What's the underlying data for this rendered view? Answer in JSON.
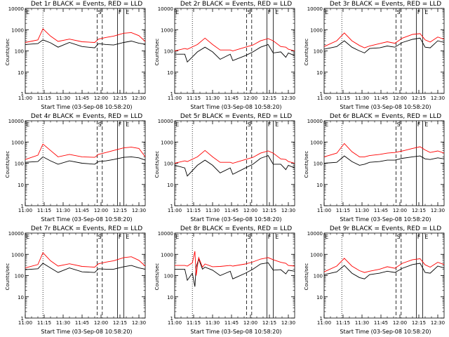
{
  "chart_data": [
    {
      "type": "line",
      "title": "Det 1r BLACK = Events, RED = LLD",
      "xlabel": "Start Time (03-Sep-08 10:58:20)",
      "ylabel": "Counts/sec",
      "marks": [
        {
          "label": "E"
        },
        {
          "label": "S"
        },
        {
          "label": "F"
        },
        {
          "label": "E"
        }
      ],
      "x_ticks": [
        "11:00",
        "11:15",
        "11:30",
        "11:45",
        "12:00",
        "12:15",
        "12:30"
      ],
      "y_ticks": [
        "1",
        "10",
        "100",
        "1000",
        "10000"
      ],
      "ylim": [
        1,
        10000
      ],
      "yscale": "log",
      "series": [
        {
          "name": "Events",
          "color": "#000000",
          "x": [
            0,
            10,
            14,
            20,
            26,
            35,
            45,
            55,
            58,
            64,
            70,
            78,
            84,
            90,
            95
          ],
          "values": [
            200,
            220,
            330,
            240,
            150,
            250,
            160,
            140,
            220,
            200,
            190,
            250,
            290,
            230,
            210
          ]
        },
        {
          "name": "LLD",
          "color": "#ff0000",
          "x": [
            0,
            10,
            14,
            20,
            26,
            35,
            45,
            55,
            58,
            64,
            70,
            78,
            84,
            90,
            95
          ],
          "values": [
            250,
            330,
            1100,
            500,
            280,
            360,
            270,
            250,
            360,
            430,
            500,
            680,
            730,
            520,
            280
          ]
        }
      ]
    },
    {
      "type": "line",
      "title": "Det 2r BLACK = Events, RED = LLD",
      "xlabel": "Start Time (03-Sep-08 10:58:20)",
      "ylabel": "Counts/sec",
      "marks": [
        {
          "label": "E"
        },
        {
          "label": "S"
        },
        {
          "label": "F"
        },
        {
          "label": "E"
        }
      ],
      "x_ticks": [
        "11:00",
        "11:15",
        "11:30",
        "11:45",
        "12:00",
        "12:15",
        "12:30"
      ],
      "y_ticks": [
        "1",
        "10",
        "100",
        "1000",
        "10000"
      ],
      "ylim": [
        1,
        10000
      ],
      "yscale": "log",
      "series": [
        {
          "name": "Events",
          "color": "#000000",
          "x": [
            0,
            8,
            10,
            18,
            24,
            30,
            36,
            44,
            46,
            56,
            62,
            68,
            74,
            78,
            84,
            88,
            90,
            95
          ],
          "values": [
            70,
            70,
            30,
            90,
            150,
            90,
            40,
            70,
            35,
            60,
            90,
            150,
            200,
            80,
            90,
            50,
            80,
            60
          ]
        },
        {
          "name": "LLD",
          "color": "#ff0000",
          "x": [
            0,
            8,
            10,
            18,
            24,
            30,
            36,
            44,
            46,
            56,
            62,
            68,
            74,
            78,
            84,
            88,
            90,
            95
          ],
          "values": [
            100,
            130,
            120,
            200,
            400,
            200,
            110,
            110,
            100,
            150,
            190,
            300,
            380,
            300,
            160,
            150,
            120,
            100
          ]
        }
      ]
    },
    {
      "type": "line",
      "title": "Det 3r BLACK = Events, RED = LLD",
      "xlabel": "Start Time (03-Sep-08 10:58:20)",
      "ylabel": "Counts/sec",
      "marks": [
        {
          "label": "E"
        },
        {
          "label": "S"
        },
        {
          "label": "F"
        },
        {
          "label": "E"
        }
      ],
      "x_ticks": [
        "11:00",
        "11:15",
        "11:30",
        "11:45",
        "12:00",
        "12:15",
        "12:30"
      ],
      "y_ticks": [
        "1",
        "10",
        "100",
        "1000",
        "10000"
      ],
      "ylim": [
        1,
        10000
      ],
      "yscale": "log",
      "series": [
        {
          "name": "Events",
          "color": "#000000",
          "x": [
            0,
            10,
            16,
            22,
            28,
            32,
            36,
            44,
            50,
            56,
            62,
            70,
            76,
            80,
            84,
            90,
            95
          ],
          "values": [
            120,
            160,
            300,
            150,
            100,
            80,
            130,
            140,
            170,
            150,
            250,
            350,
            400,
            150,
            140,
            300,
            250
          ]
        },
        {
          "name": "LLD",
          "color": "#ff0000",
          "x": [
            0,
            10,
            16,
            22,
            28,
            32,
            36,
            44,
            50,
            56,
            62,
            70,
            76,
            80,
            84,
            90,
            95
          ],
          "values": [
            160,
            300,
            700,
            300,
            180,
            140,
            170,
            220,
            270,
            230,
            400,
            600,
            650,
            330,
            260,
            450,
            350
          ]
        }
      ]
    },
    {
      "type": "line",
      "title": "Det 4r BLACK = Events, RED = LLD",
      "xlabel": "Start Time (03-Sep-08 10:58:20)",
      "ylabel": "Counts/sec",
      "marks": [
        {
          "label": "E"
        },
        {
          "label": "S"
        },
        {
          "label": "F"
        },
        {
          "label": "E"
        }
      ],
      "x_ticks": [
        "11:00",
        "11:15",
        "11:30",
        "11:45",
        "12:00",
        "12:15",
        "12:30"
      ],
      "y_ticks": [
        "1",
        "10",
        "100",
        "1000",
        "10000"
      ],
      "ylim": [
        1,
        10000
      ],
      "yscale": "log",
      "series": [
        {
          "name": "Events",
          "color": "#000000",
          "x": [
            0,
            10,
            14,
            20,
            26,
            35,
            45,
            55,
            58,
            64,
            70,
            78,
            84,
            90,
            95
          ],
          "values": [
            110,
            120,
            200,
            130,
            90,
            130,
            100,
            90,
            120,
            130,
            150,
            190,
            200,
            180,
            140
          ]
        },
        {
          "name": "LLD",
          "color": "#ff0000",
          "x": [
            0,
            10,
            14,
            20,
            26,
            35,
            45,
            55,
            58,
            64,
            70,
            78,
            84,
            90,
            95
          ],
          "values": [
            150,
            240,
            800,
            400,
            200,
            260,
            200,
            190,
            260,
            320,
            400,
            530,
            570,
            500,
            200
          ]
        }
      ]
    },
    {
      "type": "line",
      "title": "Det 5r BLACK = Events, RED = LLD",
      "xlabel": "Start Time (03-Sep-08 10:58:20)",
      "ylabel": "Counts/sec",
      "marks": [
        {
          "label": "E"
        },
        {
          "label": "S"
        },
        {
          "label": "F"
        },
        {
          "label": "E"
        }
      ],
      "x_ticks": [
        "11:00",
        "11:15",
        "11:30",
        "11:45",
        "12:00",
        "12:15",
        "12:30"
      ],
      "y_ticks": [
        "1",
        "10",
        "100",
        "1000",
        "10000"
      ],
      "ylim": [
        1,
        10000
      ],
      "yscale": "log",
      "series": [
        {
          "name": "Events",
          "color": "#000000",
          "x": [
            0,
            8,
            10,
            18,
            24,
            30,
            36,
            44,
            46,
            56,
            62,
            68,
            74,
            78,
            84,
            88,
            90,
            95
          ],
          "values": [
            80,
            60,
            25,
            80,
            140,
            80,
            35,
            60,
            30,
            60,
            90,
            170,
            230,
            90,
            90,
            50,
            80,
            60
          ]
        },
        {
          "name": "LLD",
          "color": "#ff0000",
          "x": [
            0,
            8,
            10,
            18,
            24,
            30,
            36,
            44,
            46,
            56,
            62,
            68,
            74,
            78,
            84,
            88,
            90,
            95
          ],
          "values": [
            100,
            130,
            120,
            200,
            400,
            200,
            110,
            110,
            100,
            150,
            190,
            300,
            380,
            300,
            160,
            150,
            120,
            100
          ]
        }
      ]
    },
    {
      "type": "line",
      "title": "Det 6r BLACK = Events, RED = LLD",
      "xlabel": "Start Time (03-Sep-08 10:58:20)",
      "ylabel": "Counts/sec",
      "marks": [
        {
          "label": "E"
        },
        {
          "label": "S"
        },
        {
          "label": "F"
        },
        {
          "label": "E"
        }
      ],
      "x_ticks": [
        "11:00",
        "11:15",
        "11:30",
        "11:45",
        "12:00",
        "12:15",
        "12:30"
      ],
      "y_ticks": [
        "1",
        "10",
        "100",
        "1000",
        "10000"
      ],
      "ylim": [
        1,
        10000
      ],
      "yscale": "log",
      "series": [
        {
          "name": "Events",
          "color": "#000000",
          "x": [
            0,
            10,
            16,
            22,
            28,
            32,
            36,
            44,
            50,
            56,
            62,
            70,
            76,
            80,
            84,
            90,
            95
          ],
          "values": [
            100,
            110,
            220,
            120,
            80,
            90,
            110,
            120,
            140,
            140,
            170,
            200,
            220,
            160,
            150,
            180,
            160
          ]
        },
        {
          "name": "LLD",
          "color": "#ff0000",
          "x": [
            0,
            10,
            16,
            22,
            28,
            32,
            36,
            44,
            50,
            56,
            62,
            70,
            76,
            80,
            84,
            90,
            95
          ],
          "values": [
            200,
            300,
            850,
            350,
            200,
            200,
            230,
            260,
            300,
            320,
            380,
            500,
            600,
            420,
            320,
            380,
            300
          ]
        }
      ]
    },
    {
      "type": "line",
      "title": "Det 7r BLACK = Events, RED = LLD",
      "xlabel": "Start Time (03-Sep-08 10:58:20)",
      "ylabel": "Counts/sec",
      "marks": [
        {
          "label": "E"
        },
        {
          "label": "S"
        },
        {
          "label": "F"
        },
        {
          "label": "E"
        }
      ],
      "x_ticks": [
        "11:00",
        "11:15",
        "11:30",
        "11:45",
        "12:00",
        "12:15",
        "12:30"
      ],
      "y_ticks": [
        "1",
        "10",
        "100",
        "1000",
        "10000"
      ],
      "ylim": [
        1,
        10000
      ],
      "yscale": "log",
      "series": [
        {
          "name": "Events",
          "color": "#000000",
          "x": [
            0,
            10,
            14,
            20,
            26,
            35,
            45,
            55,
            58,
            64,
            70,
            78,
            84,
            90,
            95
          ],
          "values": [
            190,
            210,
            380,
            230,
            140,
            230,
            150,
            140,
            210,
            200,
            200,
            260,
            300,
            230,
            200
          ]
        },
        {
          "name": "LLD",
          "color": "#ff0000",
          "x": [
            0,
            10,
            14,
            20,
            26,
            35,
            45,
            55,
            58,
            64,
            70,
            78,
            84,
            90,
            95
          ],
          "values": [
            230,
            330,
            1200,
            500,
            280,
            360,
            270,
            250,
            360,
            430,
            500,
            700,
            770,
            520,
            280
          ]
        }
      ]
    },
    {
      "type": "line",
      "title": "Det 8r BLACK = Events, RED = LLD",
      "xlabel": "Start Time (03-Sep-08 10:58:20)",
      "ylabel": "Counts/sec",
      "marks": [
        {
          "label": "E"
        },
        {
          "label": "S"
        },
        {
          "label": "F"
        },
        {
          "label": "E"
        }
      ],
      "x_ticks": [
        "11:00",
        "11:15",
        "11:30",
        "11:45",
        "12:00",
        "12:15",
        "12:30"
      ],
      "y_ticks": [
        "1",
        "10",
        "100",
        "1000",
        "10000"
      ],
      "ylim": [
        1,
        10000
      ],
      "yscale": "log",
      "series": [
        {
          "name": "Events",
          "color": "#000000",
          "x": [
            0,
            8,
            10,
            14,
            16,
            17,
            19,
            22,
            24,
            30,
            36,
            44,
            46,
            56,
            62,
            68,
            74,
            78,
            84,
            88,
            90,
            95
          ],
          "values": [
            200,
            200,
            60,
            130,
            30,
            250,
            600,
            200,
            250,
            180,
            100,
            160,
            70,
            130,
            200,
            350,
            400,
            180,
            190,
            120,
            180,
            160
          ]
        },
        {
          "name": "LLD",
          "color": "#ff0000",
          "x": [
            0,
            8,
            10,
            14,
            16,
            17,
            19,
            22,
            24,
            30,
            36,
            44,
            46,
            56,
            62,
            68,
            74,
            78,
            84,
            88,
            90,
            95
          ],
          "values": [
            300,
            300,
            280,
            400,
            1400,
            100,
            700,
            250,
            350,
            260,
            270,
            300,
            280,
            350,
            440,
            600,
            700,
            560,
            420,
            380,
            300,
            280
          ]
        }
      ]
    },
    {
      "type": "line",
      "title": "Det 9r BLACK = Events, RED = LLD",
      "xlabel": "Start Time (03-Sep-08 10:58:20)",
      "ylabel": "Counts/sec",
      "marks": [
        {
          "label": "E"
        },
        {
          "label": "S"
        },
        {
          "label": "F"
        },
        {
          "label": "E"
        }
      ],
      "x_ticks": [
        "11:00",
        "11:15",
        "11:30",
        "11:45",
        "12:00",
        "12:15",
        "12:30"
      ],
      "y_ticks": [
        "1",
        "10",
        "100",
        "1000",
        "10000"
      ],
      "ylim": [
        1,
        10000
      ],
      "yscale": "log",
      "series": [
        {
          "name": "Events",
          "color": "#000000",
          "x": [
            0,
            10,
            16,
            22,
            28,
            32,
            36,
            44,
            50,
            56,
            62,
            70,
            76,
            80,
            84,
            90,
            95
          ],
          "values": [
            110,
            150,
            300,
            130,
            80,
            70,
            110,
            130,
            160,
            140,
            220,
            330,
            380,
            140,
            130,
            280,
            230
          ]
        },
        {
          "name": "LLD",
          "color": "#ff0000",
          "x": [
            0,
            10,
            16,
            22,
            28,
            32,
            36,
            44,
            50,
            56,
            62,
            70,
            76,
            80,
            84,
            90,
            95
          ],
          "values": [
            150,
            280,
            650,
            280,
            170,
            140,
            160,
            200,
            260,
            220,
            380,
            560,
            620,
            320,
            250,
            420,
            330
          ]
        }
      ]
    }
  ]
}
